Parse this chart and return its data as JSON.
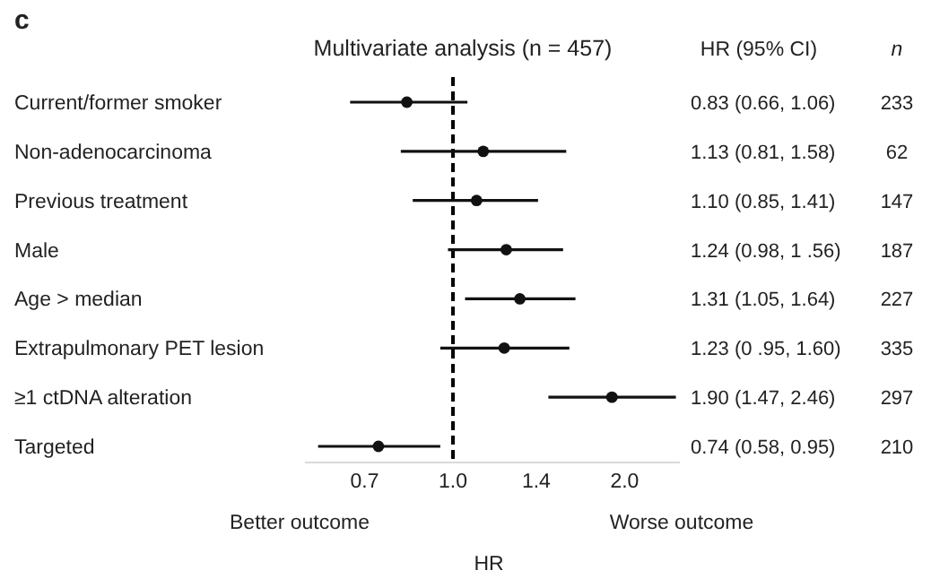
{
  "chart_data": {
    "type": "scatter",
    "orientation": "horizontal",
    "title": "Multivariate analysis (n = 457)",
    "xlabel": "HR",
    "categories": [
      "Current/former smoker",
      "Non-adenocarcinoma",
      "Previous treatment",
      "Male",
      "Age > median",
      "Extrapulmonary PET lesion",
      "≥1 ctDNA alteration",
      "Targeted"
    ],
    "values": [
      0.83,
      1.13,
      1.1,
      1.24,
      1.31,
      1.23,
      1.9,
      0.74
    ],
    "errors": [
      [
        0.66,
        1.06
      ],
      [
        0.81,
        1.58
      ],
      [
        0.85,
        1.41
      ],
      [
        0.98,
        1.56
      ],
      [
        1.05,
        1.64
      ],
      [
        0.95,
        1.6
      ],
      [
        1.47,
        2.46
      ],
      [
        0.58,
        0.95
      ]
    ],
    "value_labels": [
      "0.83 (0.66, 1.06)",
      "1.13 (0.81, 1.58)",
      "1.10 (0.85, 1.41)",
      "1.24 (0.98, 1 .56)",
      "1.31 (1.05, 1.64)",
      "1.23 (0 .95, 1.60)",
      "1.90 (1.47, 2.46)",
      "0.74 (0.58, 0.95)"
    ],
    "color": "#111111",
    "marker": "circle",
    "log": "x",
    "xlim": [
      0.55,
      2.5
    ],
    "xticks": [
      0.7,
      {
        "value": 1,
        "label": "1.0"
      },
      1.4,
      {
        "value": 2,
        "label": "2.0"
      }
    ],
    "grid": false,
    "ref_lines": [
      {
        "axis": "x",
        "value": 1,
        "line_style": "dashed",
        "color": "#000000"
      }
    ],
    "annotations": [
      "c",
      "HR (95% CI)",
      "n",
      "Better outcome",
      "Worse outcome",
      "233",
      "62",
      "147",
      "187",
      "227",
      "335",
      "297",
      "210"
    ]
  }
}
